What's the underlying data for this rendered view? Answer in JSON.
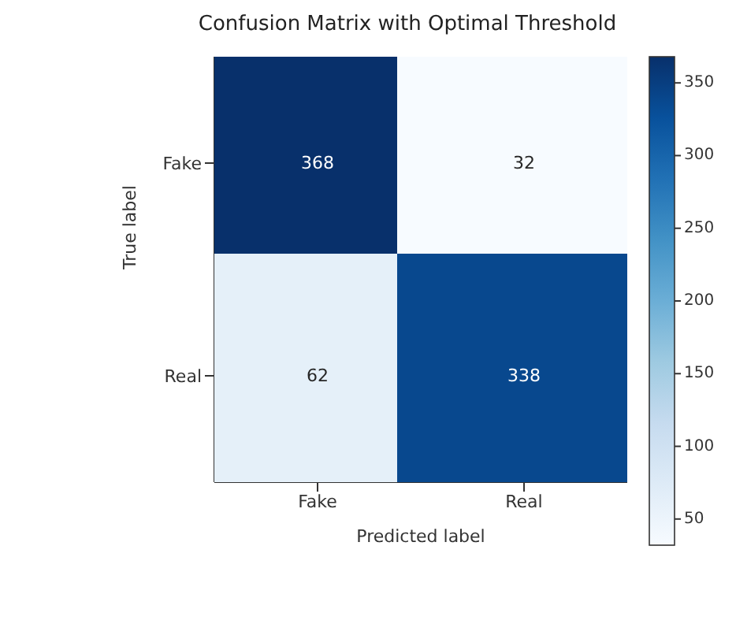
{
  "chart_data": {
    "type": "heatmap",
    "title": "Confusion Matrix with Optimal Threshold",
    "xlabel": "Predicted label",
    "ylabel": "True label",
    "categories": [
      "Fake",
      "Real"
    ],
    "y_categories": [
      "Fake",
      "Real"
    ],
    "cells": [
      [
        368,
        32
      ],
      [
        62,
        338
      ]
    ],
    "data_labels": true,
    "clim": [
      32,
      368
    ],
    "cticks": [
      50,
      100,
      150,
      200,
      250,
      300,
      350
    ]
  }
}
